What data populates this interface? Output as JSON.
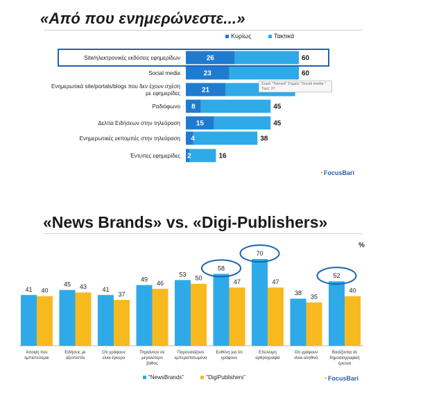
{
  "colors": {
    "primary": "#1f7bd0",
    "secondary": "#2eaae8",
    "digi": "#f8b91f",
    "highlight": "#1a64b0"
  },
  "top_chart": {
    "title": "«Από που ενημερώνεστε...»",
    "legend": [
      "Κυρίως",
      "Τακτικά"
    ],
    "tooltip": "Σειρά \"Τακτικά\" Σημείο \"Social media \" Τιμή: 37",
    "logo": "FocusBari"
  },
  "bottom_chart": {
    "title": "«News Brands» vs. «Digi-Publishers»",
    "percent_sign": "%",
    "legend": [
      "\"NewsBrands\"",
      "\"DigiPublishers\""
    ],
    "logo": "FocusBari"
  },
  "chart_data": [
    {
      "type": "bar",
      "orientation": "horizontal",
      "stacked": true,
      "categories": [
        "Site/ηλεκτρονικές εκδόσεις εφημερίδων",
        "Social media",
        "Ενημερωτικά site/portals/blogs που δεν έχουν σχέση με εφημερίδες",
        "Ραδιόφωνο",
        "Δελτία Ειδήσεων στην τηλεόραση",
        "Ενημερωτικές εκπομπές στην τηλεόραση",
        "Έντυπες εφημερίδες"
      ],
      "series": [
        {
          "name": "Κυρίως",
          "values": [
            26,
            23,
            21,
            8,
            15,
            4,
            2
          ]
        },
        {
          "name": "Τακτικά",
          "values": [
            34,
            37,
            37,
            37,
            30,
            34,
            14
          ]
        }
      ],
      "totals": [
        60,
        60,
        58,
        45,
        45,
        38,
        16
      ],
      "total_labels": [
        "60",
        "60",
        "",
        "45",
        "45",
        "38",
        "16"
      ],
      "highlighted_category": "Site/ηλεκτρονικές εκδόσεις εφημερίδων",
      "xlim": [
        0,
        60
      ],
      "grid": false,
      "legend_position": "top-right"
    },
    {
      "type": "bar",
      "orientation": "vertical",
      "categories": [
        "Άποψη που εμπιστεύομαι",
        "Ειδήσεις με αξιοπιστία",
        "Οτι γράφουν είναι έγκυρο",
        "Πηγαίνουν σε μεγαλύτερο βάθος",
        "Παρουσιάζουν εμπεριστατωμένα",
        "Ευθύνη για ότι γράφουν",
        "Επώνυμη αρθρογραφία",
        "Οτι γράφουν είναι αληθινό",
        "Βασίζονται σε δημοσιογραφική έρευνα"
      ],
      "series": [
        {
          "name": "\"NewsBrands\"",
          "values": [
            41,
            45,
            41,
            49,
            53,
            58,
            70,
            38,
            52
          ]
        },
        {
          "name": "\"DigiPublishers\"",
          "values": [
            40,
            43,
            37,
            46,
            50,
            47,
            47,
            35,
            40
          ]
        }
      ],
      "circled_values": [
        58,
        70,
        52
      ],
      "ylim": [
        0,
        75
      ],
      "grid": false,
      "legend_position": "bottom"
    }
  ]
}
